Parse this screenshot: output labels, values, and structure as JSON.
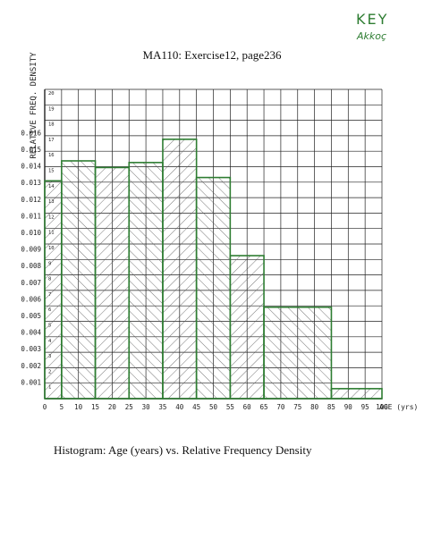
{
  "title": "MA110: Exercise12, page236",
  "annotation": {
    "key": "KEY",
    "author": "Akkoç"
  },
  "caption": "Histogram: Age (years) vs. Relative Frequency Density",
  "colors": {
    "bar_edge": "#2e7d32",
    "grid": "#222222",
    "hatch": "#555555"
  },
  "chart_data": {
    "type": "bar",
    "title": "",
    "xlabel": "AGE (yrs)",
    "ylabel": "RELATIVE FREQ. DENSITY",
    "xlim": [
      0,
      100
    ],
    "ylim": [
      0,
      0.0186
    ],
    "x_ticks": [
      "0",
      "5",
      "10",
      "15",
      "20",
      "25",
      "30",
      "35",
      "40",
      "45",
      "50",
      "55",
      "60",
      "65",
      "70",
      "75",
      "80",
      "85",
      "90",
      "95",
      "100"
    ],
    "y_ticks": [
      "0.001",
      "0.002",
      "0.003",
      "0.004",
      "0.005",
      "0.006",
      "0.007",
      "0.008",
      "0.009",
      "0.010",
      "0.011",
      "0.012",
      "0.013",
      "0.014",
      "0.015",
      "0.016"
    ],
    "grid_row_numbers": [
      "1",
      "2",
      "3",
      "4",
      "5",
      "6",
      "7",
      "8",
      "9",
      "10",
      "11",
      "12",
      "13",
      "14",
      "15",
      "16",
      "17",
      "18",
      "19",
      "20"
    ],
    "grid": true,
    "bins": [
      {
        "from": 0,
        "to": 5,
        "value": 0.0131
      },
      {
        "from": 5,
        "to": 15,
        "value": 0.0143
      },
      {
        "from": 15,
        "to": 25,
        "value": 0.0139
      },
      {
        "from": 25,
        "to": 35,
        "value": 0.0142
      },
      {
        "from": 35,
        "to": 45,
        "value": 0.0156
      },
      {
        "from": 45,
        "to": 55,
        "value": 0.0133
      },
      {
        "from": 55,
        "to": 65,
        "value": 0.0086
      },
      {
        "from": 65,
        "to": 85,
        "value": 0.0055
      },
      {
        "from": 85,
        "to": 100,
        "value": 0.0006
      }
    ]
  }
}
